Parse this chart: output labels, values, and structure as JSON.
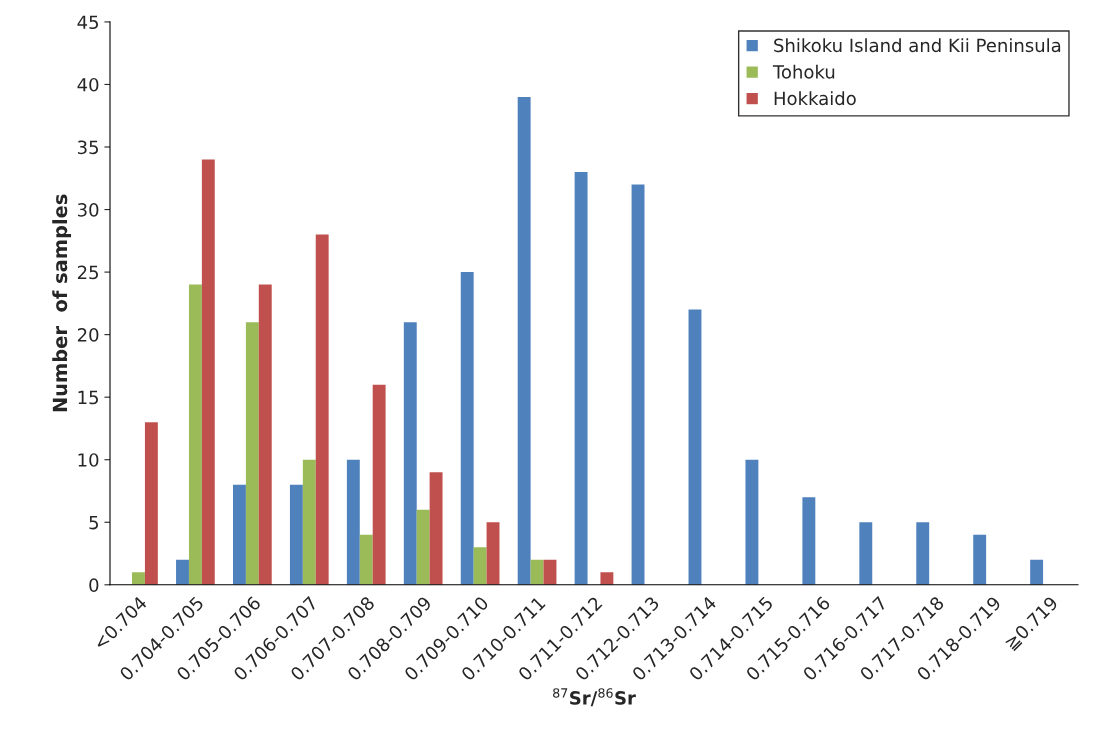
{
  "chart_data": {
    "type": "bar",
    "xlabel": "$^{87}$Sr/$^{86}$Sr",
    "ylabel": "Number  of samples",
    "categories": [
      "<0.704",
      "0.704-0.705",
      "0.705-0.706",
      "0.706-0.707",
      "0.707-0.708",
      "0.708-0.709",
      "0.709-0.710",
      "0.710-0.711",
      "0.711-0.712",
      "0.712-0.713",
      "0.713-0.714",
      "0.714-0.715",
      "0.715-0.716",
      "0.716-0.717",
      "0.717-0.718",
      "0.718-0.719",
      "≧0.719"
    ],
    "series": [
      {
        "name": "Shikoku Island and Kii Peninsula",
        "color": "#4f81bd",
        "values": [
          0,
          2,
          8,
          8,
          10,
          21,
          25,
          39,
          33,
          32,
          22,
          10,
          7,
          5,
          5,
          4,
          2
        ]
      },
      {
        "name": "Tohoku",
        "color": "#9bbb59",
        "values": [
          1,
          24,
          21,
          10,
          4,
          6,
          3,
          2,
          0,
          0,
          0,
          0,
          0,
          0,
          0,
          0,
          0
        ]
      },
      {
        "name": "Hokkaido",
        "color": "#c0504d",
        "values": [
          13,
          34,
          24,
          28,
          16,
          9,
          5,
          2,
          1,
          0,
          0,
          0,
          0,
          0,
          0,
          0,
          0
        ]
      }
    ],
    "ylim": [
      0,
      45
    ],
    "yticks": [
      0,
      5,
      10,
      15,
      20,
      25,
      30,
      35,
      40,
      45
    ],
    "grid": false,
    "legend": "top right"
  }
}
